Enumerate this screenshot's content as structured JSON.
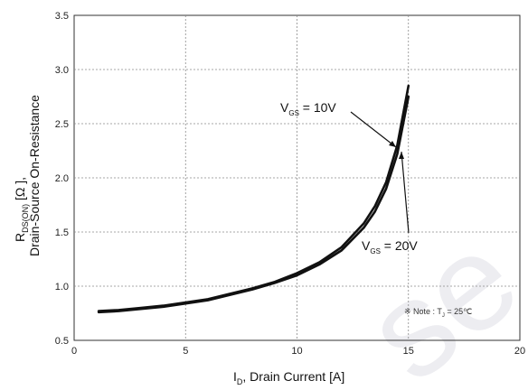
{
  "chart_data": {
    "type": "line",
    "xlabel": {
      "main": "I",
      "sub": "D",
      "rest": ", Drain Current [A]"
    },
    "ylabel": {
      "line1_main": "R",
      "line1_sub": "DS(ON)",
      "line1_rest": " [Ω ],",
      "line2": "Drain-Source On-Resistance"
    },
    "xlim": [
      0,
      20
    ],
    "ylim": [
      0.5,
      3.5
    ],
    "x_ticks": [
      "0",
      "5",
      "10",
      "15",
      "20"
    ],
    "y_ticks": [
      "0.5",
      "1.0",
      "1.5",
      "2.0",
      "2.5",
      "3.0",
      "3.5"
    ],
    "grid": true,
    "series": [
      {
        "name": "VGS = 10V",
        "x": [
          1.1,
          2,
          3,
          4,
          5,
          6,
          7,
          8,
          9,
          10,
          11,
          12,
          13,
          13.5,
          14,
          14.5,
          15
        ],
        "y": [
          0.77,
          0.78,
          0.8,
          0.82,
          0.85,
          0.88,
          0.93,
          0.98,
          1.04,
          1.12,
          1.22,
          1.36,
          1.58,
          1.74,
          1.96,
          2.3,
          2.85
        ]
      },
      {
        "name": "VGS = 20V",
        "x": [
          1.1,
          2,
          3,
          4,
          5,
          6,
          7,
          8,
          9,
          10,
          11,
          12,
          13,
          13.5,
          14,
          14.5,
          15
        ],
        "y": [
          0.76,
          0.77,
          0.79,
          0.81,
          0.84,
          0.87,
          0.92,
          0.97,
          1.03,
          1.1,
          1.2,
          1.33,
          1.54,
          1.69,
          1.9,
          2.22,
          2.75
        ]
      }
    ],
    "annotations": {
      "vgs10": {
        "v": "V",
        "sub": "GS",
        "rest": " = 10V"
      },
      "vgs20": {
        "v": "V",
        "sub": "GS",
        "rest": " = 20V"
      },
      "note": {
        "symbol": "※",
        "main": " Note : T",
        "sub": "J",
        "rest": " = 25℃"
      }
    },
    "watermark": "se"
  }
}
